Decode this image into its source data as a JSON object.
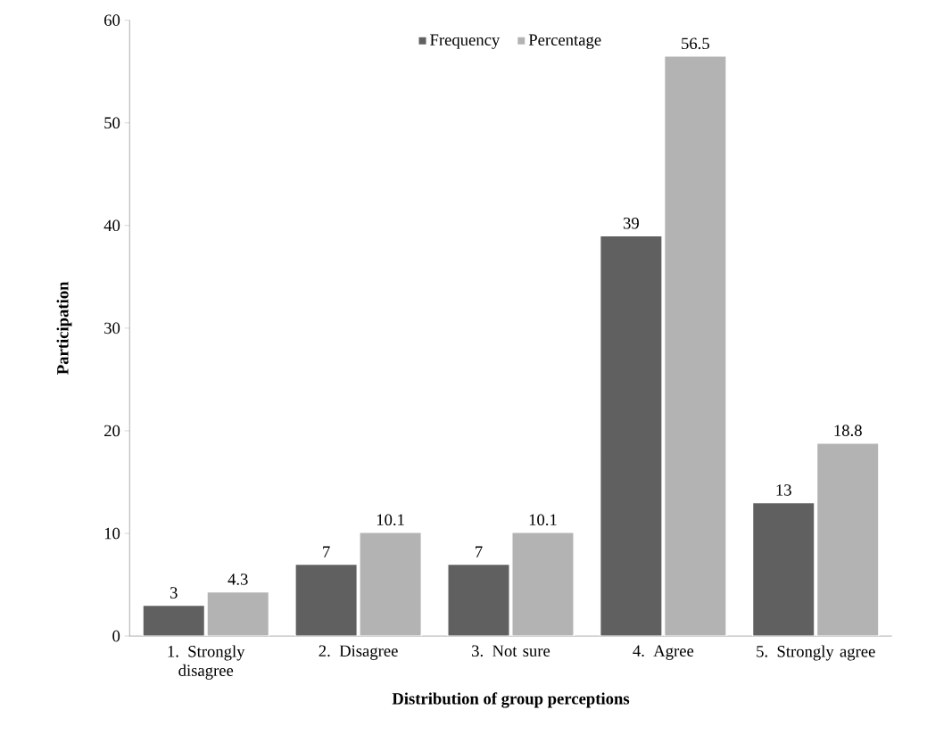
{
  "chart_data": {
    "type": "bar",
    "xlabel": "Distribution of group perceptions",
    "ylabel": "Participation",
    "categories": [
      "1. Strongly disagree",
      "2. Disagree",
      "3. Not sure",
      "4. Agree",
      "5. Strongly agree"
    ],
    "series": [
      {
        "name": "Frequency",
        "color": "#606060",
        "values": [
          3,
          7,
          7,
          39,
          13
        ]
      },
      {
        "name": "Percentage",
        "color": "#b3b3b3",
        "values": [
          4.3,
          10.1,
          10.1,
          56.5,
          18.8
        ]
      }
    ],
    "ylim": [
      0,
      60
    ],
    "yticks": [
      0,
      10,
      20,
      30,
      40,
      50,
      60
    ],
    "data_labels": true,
    "legend": "top",
    "grid": false
  }
}
